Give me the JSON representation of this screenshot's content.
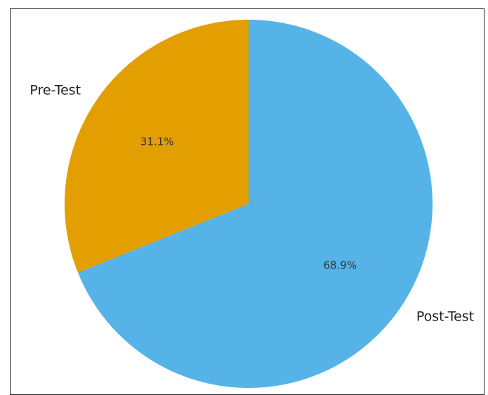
{
  "chart_data": {
    "type": "pie",
    "categories": [
      "Pre-Test",
      "Post-Test"
    ],
    "values": [
      31.1,
      68.9
    ],
    "value_labels": [
      "31.1%",
      "68.9%"
    ],
    "colors": [
      "#E39E00",
      "#56B3E7"
    ],
    "start_angle_deg": 90,
    "direction": "counterclockwise",
    "title": "",
    "legend": "none"
  }
}
